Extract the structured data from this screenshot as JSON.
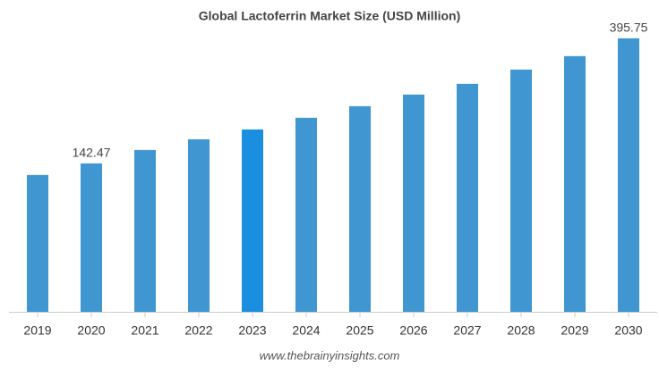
{
  "chart_data": {
    "type": "bar",
    "title": "Global Lactoferrin Market Size (USD Million)",
    "categories": [
      "2019",
      "2020",
      "2021",
      "2022",
      "2023",
      "2024",
      "2025",
      "2026",
      "2027",
      "2028",
      "2029",
      "2030"
    ],
    "values": [
      119.0,
      142.47,
      169.6,
      191.3,
      211.2,
      234.8,
      258.3,
      281.8,
      303.5,
      332.4,
      359.6,
      395.75
    ],
    "value_labels": [
      null,
      "142.47",
      null,
      null,
      null,
      null,
      null,
      null,
      null,
      null,
      null,
      "395.75"
    ],
    "colors": [
      "#4096d0",
      "#4096d0",
      "#4096d0",
      "#4096d0",
      "#1a8fdf",
      "#4096d0",
      "#4096d0",
      "#4096d0",
      "#4096d0",
      "#4096d0",
      "#4096d0",
      "#4096d0"
    ],
    "ylim": [
      -158,
      400
    ],
    "source": "www.thebrainyinsights.com"
  }
}
